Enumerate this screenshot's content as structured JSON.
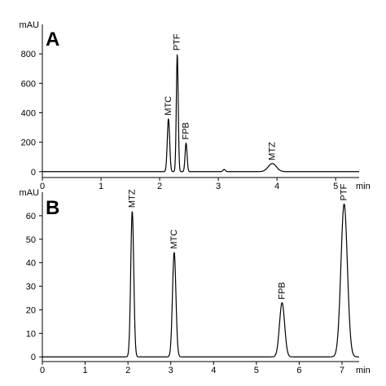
{
  "chart_data": [
    {
      "type": "line",
      "panel_label": "A",
      "ylabel": "mAU",
      "xlabel": "min",
      "xlim": [
        0,
        5.4
      ],
      "ylim": [
        -40,
        1000
      ],
      "x_ticks": [
        0,
        1,
        2,
        3,
        4,
        5
      ],
      "y_ticks": [
        0,
        200,
        400,
        600,
        800
      ],
      "peaks": [
        {
          "name": "MTC",
          "x": 2.15,
          "y": 360,
          "width": 0.02
        },
        {
          "name": "PTF",
          "x": 2.3,
          "y": 800,
          "width": 0.016
        },
        {
          "name": "FPB",
          "x": 2.45,
          "y": 195,
          "width": 0.017
        },
        {
          "name": "",
          "x": 3.1,
          "y": 15,
          "width": 0.02
        },
        {
          "name": "MTZ",
          "x": 3.92,
          "y": 55,
          "width": 0.07
        }
      ]
    },
    {
      "type": "line",
      "panel_label": "B",
      "ylabel": "mAU",
      "xlabel": "min",
      "xlim": [
        0,
        7.4
      ],
      "ylim": [
        -2,
        70
      ],
      "x_ticks": [
        0,
        1,
        2,
        3,
        4,
        5,
        6,
        7
      ],
      "y_ticks": [
        0,
        10,
        20,
        30,
        40,
        50,
        60
      ],
      "peaks": [
        {
          "name": "MTZ",
          "x": 2.1,
          "y": 62,
          "width": 0.035
        },
        {
          "name": "MTC",
          "x": 3.08,
          "y": 44.5,
          "width": 0.04
        },
        {
          "name": "FPB",
          "x": 5.6,
          "y": 23,
          "width": 0.06
        },
        {
          "name": "PTF",
          "x": 7.05,
          "y": 65,
          "width": 0.075
        }
      ]
    }
  ]
}
